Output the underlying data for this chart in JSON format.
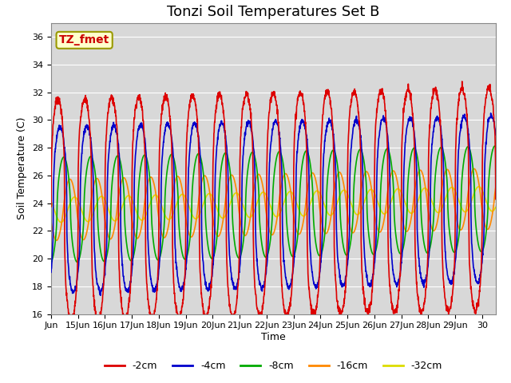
{
  "title": "Tonzi Soil Temperatures Set B",
  "xlabel": "Time",
  "ylabel": "Soil Temperature (C)",
  "annotation": "TZ_fmet",
  "ylim": [
    16,
    37
  ],
  "xlim_start": 0,
  "xlim_end": 16.5,
  "plot_bg": "#d8d8d8",
  "legend_labels": [
    "-2cm",
    "-4cm",
    "-8cm",
    "-16cm",
    "-32cm"
  ],
  "legend_colors": [
    "#dd0000",
    "#0000cc",
    "#00aa00",
    "#ff8800",
    "#dddd00"
  ],
  "xtick_labels": [
    "Jun",
    "15Jun",
    "16Jun",
    "17Jun",
    "18Jun",
    "19Jun",
    "20Jun",
    "21Jun",
    "22Jun",
    "23Jun",
    "24Jun",
    "25Jun",
    "26Jun",
    "27Jun",
    "28Jun",
    "29Jun",
    "30"
  ],
  "xtick_positions": [
    0,
    1,
    2,
    3,
    4,
    5,
    6,
    7,
    8,
    9,
    10,
    11,
    12,
    13,
    14,
    15,
    16
  ],
  "ytick_positions": [
    16,
    18,
    20,
    22,
    24,
    26,
    28,
    30,
    32,
    34,
    36
  ],
  "title_fontsize": 13,
  "axis_label_fontsize": 9,
  "tick_fontsize": 8,
  "mean_base": 23.5,
  "amp_2cm": 8.0,
  "amp_4cm": 6.0,
  "amp_8cm": 3.8,
  "amp_16cm": 2.2,
  "amp_32cm": 0.9,
  "phase_2cm": 0.0,
  "phase_4cm": 0.08,
  "phase_8cm": 0.22,
  "phase_16cm": 0.45,
  "phase_32cm": 0.62,
  "sharpness_2cm": 3.0,
  "sharpness_4cm": 2.5,
  "sharpness_8cm": 1.8,
  "sharpness_16cm": 1.2,
  "sharpness_32cm": 1.0
}
